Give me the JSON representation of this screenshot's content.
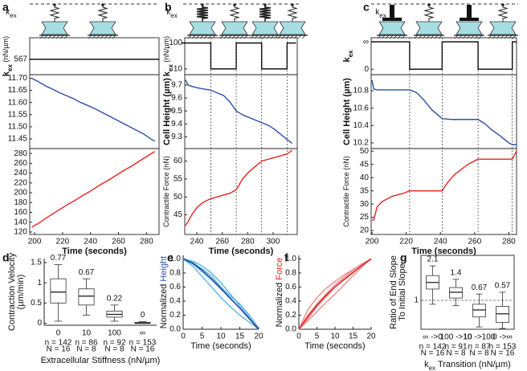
{
  "chart_data": [
    {
      "type": "line",
      "panel": "a",
      "xlim": [
        196.5,
        289
      ],
      "x": [
        196.5,
        289
      ],
      "series": [
        {
          "color": "#000000",
          "values": [
            567,
            567
          ]
        }
      ],
      "ylim": [
        400,
        800
      ],
      "yticks": [
        567
      ],
      "ylabel": [
        [
          {
            "text": "k",
            "bold": true
          },
          {
            "text": "ex",
            "sub": true,
            "bold": true
          },
          {
            "text": " (nN/µm)",
            "small": true
          }
        ]
      ],
      "transitions": []
    },
    {
      "type": "line",
      "xlim": [
        196.5,
        289
      ],
      "x": [
        198,
        203,
        208,
        213,
        218,
        223,
        228,
        233,
        238,
        243,
        248,
        253,
        258,
        263,
        268,
        273,
        278,
        283,
        286
      ],
      "series": [
        {
          "color": "#2e4ea5",
          "values": [
            11.7,
            11.685,
            11.668,
            11.655,
            11.64,
            11.628,
            11.615,
            11.6,
            11.588,
            11.575,
            11.56,
            11.545,
            11.53,
            11.515,
            11.5,
            11.485,
            11.47,
            11.45,
            11.44
          ]
        }
      ],
      "ylim": [
        11.41,
        11.715
      ],
      "yticks": [
        {
          "value": 11.7,
          "label": "11.70"
        },
        {
          "value": 11.65,
          "label": "11.65"
        },
        {
          "value": 11.6,
          "label": "11.60"
        },
        {
          "value": 11.55,
          "label": "11.55"
        },
        {
          "value": 11.5,
          "label": "11.50"
        },
        {
          "value": 11.45,
          "label": "11.45"
        }
      ]
    },
    {
      "type": "line",
      "xlim": [
        196.5,
        289
      ],
      "x": [
        198,
        203,
        208,
        213,
        218,
        223,
        228,
        233,
        238,
        243,
        248,
        253,
        258,
        263,
        268,
        273,
        278,
        283,
        286
      ],
      "series": [
        {
          "color": "#e8231f",
          "values": [
            130,
            138,
            148,
            157,
            166,
            175,
            183,
            192,
            200,
            209,
            218,
            226,
            235,
            244,
            252,
            261,
            270,
            279,
            284
          ]
        }
      ],
      "ylim": [
        115,
        290
      ],
      "yticks": [
        120,
        140,
        160,
        180,
        200,
        220,
        240,
        260,
        280
      ],
      "xticks": [
        200,
        220,
        240,
        260,
        280
      ],
      "xlabel": [
        [
          {
            "text": "Time (seconds)",
            "bold": true
          }
        ]
      ]
    },
    {
      "type": "line",
      "panel": "b",
      "xlim": [
        230.5,
        319
      ],
      "log": true,
      "x": [
        228,
        251,
        251,
        271,
        271,
        291,
        291,
        311,
        311,
        318
      ],
      "series": [
        {
          "color": "#000000",
          "values": [
            100,
            100,
            10,
            10,
            100,
            100,
            10,
            10,
            100,
            100
          ]
        }
      ],
      "ylim": [
        6,
        160
      ],
      "yticks": [
        10,
        100
      ],
      "ylabel": [
        [
          {
            "text": "k",
            "bold": true
          },
          {
            "text": "ex",
            "sub": true,
            "bold": true
          },
          {
            "text": " (nN/µm)",
            "small": true
          }
        ]
      ],
      "transitions": [
        251,
        271,
        291,
        311
      ]
    },
    {
      "type": "line",
      "xlim": [
        230.5,
        319
      ],
      "x": [
        231,
        233,
        236,
        240,
        245,
        251,
        256,
        261,
        266,
        271,
        276,
        281,
        286,
        291,
        296,
        301,
        306,
        311,
        315
      ],
      "series": [
        {
          "color": "#2e4ea5",
          "values": [
            9.74,
            9.7,
            9.69,
            9.68,
            9.67,
            9.66,
            9.64,
            9.62,
            9.57,
            9.5,
            9.47,
            9.45,
            9.43,
            9.41,
            9.39,
            9.36,
            9.32,
            9.28,
            9.25
          ]
        }
      ],
      "ylim": [
        9.21,
        9.78
      ],
      "yticks": [
        9.3,
        9.4,
        9.5,
        9.6,
        9.7
      ],
      "ylabel": [
        [
          {
            "text": "Cell Height (µm)",
            "bold": true
          }
        ]
      ]
    },
    {
      "type": "line",
      "xlim": [
        230.5,
        319
      ],
      "x": [
        231,
        233,
        236,
        240,
        245,
        251,
        256,
        261,
        266,
        271,
        276,
        281,
        286,
        291,
        296,
        301,
        306,
        311,
        315
      ],
      "series": [
        {
          "color": "#e8231f",
          "values": [
            42,
            43,
            45,
            47,
            48.5,
            49.5,
            50,
            50.5,
            51,
            52,
            55,
            57,
            58.5,
            60,
            60.5,
            61,
            61.5,
            62,
            63
          ]
        }
      ],
      "ylim": [
        39.5,
        63.5
      ],
      "yticks": [
        45,
        50,
        55,
        60
      ],
      "ylabel": [
        [
          {
            "text": "Contractile Force (nN)",
            "small": true
          }
        ]
      ],
      "xticks": [
        240,
        260,
        280,
        300
      ],
      "xlabel": [
        [
          {
            "text": "Time (seconds)",
            "bold": true
          }
        ]
      ]
    },
    {
      "type": "line",
      "panel": "c",
      "xlim": [
        199.5,
        284.5
      ],
      "x": [
        199.5,
        222,
        222,
        241,
        241,
        262,
        262,
        282,
        282,
        284.5
      ],
      "series": [
        {
          "color": "#000000",
          "values": [
            1,
            1,
            0,
            0,
            1,
            1,
            0,
            0,
            1,
            1
          ]
        }
      ],
      "ylim": [
        -0.2,
        1.15
      ],
      "yticks": [
        0,
        {
          "value": 1,
          "label": "∞"
        }
      ],
      "ylabel": [
        [
          {
            "text": "k",
            "bold": true
          },
          {
            "text": "ex",
            "sub": true,
            "bold": true
          }
        ]
      ],
      "transitions": [
        222,
        241,
        262,
        282
      ]
    },
    {
      "type": "line",
      "xlim": [
        199.5,
        284.5
      ],
      "x": [
        200,
        201,
        203,
        222,
        226,
        230,
        235,
        241,
        246,
        252,
        257,
        262,
        266,
        270,
        275,
        280,
        282,
        284.5
      ],
      "series": [
        {
          "color": "#2e4ea5",
          "values": [
            10.92,
            10.82,
            10.81,
            10.81,
            10.78,
            10.7,
            10.58,
            10.48,
            10.47,
            10.47,
            10.47,
            10.47,
            10.42,
            10.35,
            10.28,
            10.2,
            10.18,
            10.18
          ]
        }
      ],
      "ylim": [
        10.135,
        10.985
      ],
      "yticks": [
        10.2,
        10.4,
        10.6,
        10.8
      ],
      "ylabel": [
        [
          {
            "text": "Cell Height (µm)",
            "bold": true
          }
        ]
      ]
    },
    {
      "type": "line",
      "xlim": [
        199.5,
        284.5
      ],
      "x": [
        200,
        201,
        203,
        206,
        212,
        218,
        222,
        230,
        241,
        244,
        248,
        252,
        256,
        262,
        270,
        282,
        284.5
      ],
      "series": [
        {
          "color": "#e8231f",
          "values": [
            24,
            24,
            29,
            31,
            33,
            34,
            35,
            35,
            35,
            38,
            41,
            43,
            45,
            47,
            47,
            47,
            50
          ]
        }
      ],
      "ylim": [
        18.5,
        51
      ],
      "yticks": [
        20,
        25,
        30,
        35,
        40,
        45,
        50
      ],
      "ylabel": [
        [
          {
            "text": "Contractile Force (nN)",
            "small": true
          }
        ]
      ],
      "xticks": [
        200,
        220,
        240,
        260,
        280
      ],
      "xlabel": [
        [
          {
            "text": "Time (seconds)",
            "bold": true
          }
        ]
      ]
    },
    {
      "type": "box",
      "panel": "d",
      "frame": "axes",
      "categories": [
        "0",
        "10",
        "100",
        "∞"
      ],
      "n_labels": [
        "n = 142",
        "n = 86",
        "n = 92",
        "n = 153"
      ],
      "N_labels": [
        "N = 16",
        "N = 8",
        "N = 8",
        "N = 16"
      ],
      "boxes": [
        {
          "min": 0.05,
          "q1": 0.5,
          "median": 0.77,
          "q3": 1.1,
          "max": 1.45
        },
        {
          "min": 0.2,
          "q1": 0.45,
          "median": 0.67,
          "q3": 0.85,
          "max": 1.1
        },
        {
          "min": 0.05,
          "q1": 0.15,
          "median": 0.22,
          "q3": 0.3,
          "max": 0.45
        },
        {
          "min": 0,
          "q1": 0,
          "median": 0,
          "q3": 0.02,
          "max": 0.04
        }
      ],
      "ylim": [
        -0.05,
        1.6
      ],
      "yticks": [
        0,
        0.5,
        1,
        1.5
      ],
      "ylabel": [
        [
          {
            "text": "Contraction Velocity"
          }
        ],
        [
          {
            "text": "(µm/min)"
          }
        ]
      ],
      "xlabel": [
        [
          {
            "text": "Extracellular Stiffness (nN/µm)"
          }
        ]
      ]
    },
    {
      "type": "line",
      "panel": "e",
      "frame": "axes",
      "xlim": [
        0,
        20
      ],
      "x": [
        0,
        2.5,
        5,
        7.5,
        10,
        12.5,
        15,
        17.5,
        20
      ],
      "series": [
        {
          "color": "#5ab4e5",
          "values": [
            1,
            0.93,
            0.82,
            0.7,
            0.57,
            0.43,
            0.3,
            0.15,
            0
          ]
        },
        {
          "color": "#5ab4e5",
          "values": [
            1,
            0.97,
            0.9,
            0.8,
            0.66,
            0.5,
            0.33,
            0.17,
            0
          ]
        },
        {
          "color": "#5ab4e5",
          "values": [
            1,
            0.9,
            0.75,
            0.6,
            0.45,
            0.32,
            0.2,
            0.1,
            0
          ]
        },
        {
          "color": "#5ab4e5",
          "values": [
            1,
            0.95,
            0.86,
            0.76,
            0.6,
            0.47,
            0.36,
            0.2,
            0.02
          ]
        },
        {
          "color": "#1f3f8f",
          "values": [
            1,
            0.94,
            0.84,
            0.72,
            0.58,
            0.44,
            0.3,
            0.15,
            0
          ]
        }
      ],
      "ylim": [
        0,
        1.05
      ],
      "yticks": [
        {
          "value": 0,
          "label": "0.0"
        },
        {
          "value": 0.2,
          "label": "0.2"
        },
        {
          "value": 0.4,
          "label": "0.4"
        },
        {
          "value": 0.6,
          "label": "0.6"
        },
        {
          "value": 0.8,
          "label": "0.8"
        },
        {
          "value": 1,
          "label": "1.0"
        }
      ],
      "xticks": [
        0,
        5,
        10,
        15,
        20
      ],
      "ylabel": [
        [
          {
            "text": "Normalized "
          },
          {
            "text": "Height",
            "color": "#2e4ea5"
          }
        ]
      ],
      "xlabel": [
        [
          {
            "text": "Time (seconds)"
          }
        ]
      ]
    },
    {
      "type": "line",
      "panel": "f",
      "frame": "axes",
      "xlim": [
        0,
        20
      ],
      "x": [
        0,
        2.5,
        5,
        7.5,
        10,
        12.5,
        15,
        17.5,
        20
      ],
      "series": [
        {
          "color": "#f08a8a",
          "values": [
            0,
            0.2,
            0.36,
            0.5,
            0.63,
            0.74,
            0.84,
            0.93,
            1
          ]
        },
        {
          "color": "#f08a8a",
          "values": [
            0,
            0.12,
            0.25,
            0.38,
            0.5,
            0.63,
            0.76,
            0.89,
            1
          ]
        },
        {
          "color": "#f08a8a",
          "values": [
            0,
            0.28,
            0.45,
            0.58,
            0.68,
            0.77,
            0.85,
            0.93,
            1
          ]
        },
        {
          "color": "#f08a8a",
          "values": [
            0,
            0.15,
            0.32,
            0.46,
            0.6,
            0.7,
            0.8,
            0.91,
            1
          ]
        },
        {
          "color": "#d62020",
          "values": [
            0,
            0.18,
            0.34,
            0.48,
            0.6,
            0.71,
            0.81,
            0.91,
            1
          ]
        }
      ],
      "ylim": [
        0,
        1.05
      ],
      "yticks": [
        {
          "value": 0,
          "label": "0.0"
        },
        {
          "value": 0.2,
          "label": "0.2"
        },
        {
          "value": 0.4,
          "label": "0.4"
        },
        {
          "value": 0.6,
          "label": "0.6"
        },
        {
          "value": 0.8,
          "label": "0.8"
        },
        {
          "value": 1,
          "label": "1.0"
        }
      ],
      "xticks": [
        0,
        5,
        10,
        15,
        20
      ],
      "ylabel": [
        [
          {
            "text": "Normalized "
          },
          {
            "text": "Force",
            "color": "#e8231f"
          }
        ]
      ],
      "xlabel": [
        [
          {
            "text": "Time (seconds)"
          }
        ]
      ]
    },
    {
      "type": "box",
      "panel": "g",
      "frame": "box",
      "log": true,
      "grid": true,
      "categories": [
        "∞ ->0",
        "100 ->10",
        "10 ->100",
        "0 ->∞"
      ],
      "n_labels": [
        "n = 142",
        "n = 91",
        "n = 87",
        "n = 153"
      ],
      "N_labels": [
        "N = 16",
        "N = 8",
        "N = 8",
        "N = 16"
      ],
      "boxes": [
        {
          "min": 0.85,
          "q1": 1.6,
          "median": 2.1,
          "q3": 2.8,
          "max": 4.2
        },
        {
          "min": 0.8,
          "q1": 1.1,
          "median": 1.4,
          "q3": 1.7,
          "max": 2.4
        },
        {
          "min": 0.33,
          "q1": 0.5,
          "median": 0.67,
          "q3": 0.85,
          "max": 1.3
        },
        {
          "min": 0.31,
          "q1": 0.4,
          "median": 0.57,
          "q3": 0.78,
          "max": 1.4
        }
      ],
      "ylim": [
        0.3,
        6.5
      ],
      "yticks": [
        1
      ],
      "ylabel": [
        [
          {
            "text": "Ratio of End Slope"
          }
        ],
        [
          {
            "text": "To Initial Slope"
          }
        ]
      ],
      "xlabel": [
        [
          {
            "text": "k"
          },
          {
            "text": "ex",
            "sub": true
          },
          {
            "text": " Transition (nN/µm)"
          }
        ]
      ]
    }
  ],
  "schematic_label": [
    {
      "text": "k"
    },
    {
      "text": "ex",
      "sub": true
    }
  ]
}
